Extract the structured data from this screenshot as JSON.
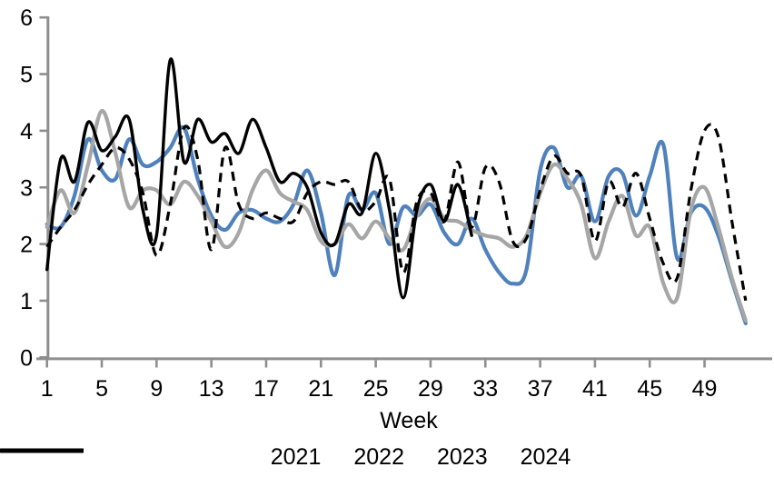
{
  "chart_data": {
    "type": "line",
    "title": "",
    "xlabel": "Week",
    "ylabel": "",
    "xlim": [
      1,
      52
    ],
    "ylim": [
      0,
      6
    ],
    "yticks": [
      0,
      1,
      2,
      3,
      4,
      5,
      6
    ],
    "xticks": [
      1,
      5,
      9,
      13,
      17,
      21,
      25,
      29,
      33,
      37,
      41,
      45,
      49
    ],
    "grid": false,
    "line_smoothing": true,
    "legend_position": "bottom",
    "axis_color": "#8e8e8e",
    "text_color": "#000000",
    "weeks": [
      1,
      2,
      3,
      4,
      5,
      6,
      7,
      8,
      9,
      10,
      11,
      12,
      13,
      14,
      15,
      16,
      17,
      18,
      19,
      20,
      21,
      22,
      23,
      24,
      25,
      26,
      27,
      28,
      29,
      30,
      31,
      32,
      33,
      34,
      35,
      36,
      37,
      38,
      39,
      40,
      41,
      42,
      43,
      44,
      45,
      46,
      47,
      48,
      49,
      50,
      51,
      52
    ],
    "series": [
      {
        "name": "2021",
        "color": "#4F81BD",
        "style": "solid",
        "stroke_width": 4.2,
        "values": [
          2.35,
          2.3,
          2.85,
          3.85,
          3.3,
          3.15,
          3.85,
          3.4,
          3.45,
          3.7,
          4.05,
          3.15,
          2.5,
          2.25,
          2.55,
          2.6,
          2.45,
          2.4,
          2.7,
          3.3,
          2.55,
          1.45,
          2.85,
          2.6,
          2.9,
          2.0,
          2.65,
          2.5,
          2.7,
          2.2,
          2.0,
          2.45,
          1.9,
          1.5,
          1.3,
          1.55,
          3.3,
          3.7,
          3.0,
          3.2,
          2.4,
          3.2,
          3.25,
          2.5,
          3.2,
          3.75,
          1.75,
          2.55,
          2.65,
          2.15,
          1.35,
          0.6
        ]
      },
      {
        "name": "2022",
        "color": "#A6A6A6",
        "style": "solid",
        "stroke_width": 4.2,
        "values": [
          2.3,
          2.95,
          2.55,
          3.4,
          4.35,
          3.6,
          2.65,
          2.95,
          2.95,
          2.7,
          3.1,
          2.85,
          2.4,
          1.95,
          2.2,
          2.95,
          3.3,
          2.9,
          2.75,
          2.6,
          2.05,
          2.0,
          2.35,
          2.1,
          2.4,
          2.1,
          1.9,
          2.5,
          2.8,
          2.45,
          2.4,
          2.25,
          2.15,
          2.1,
          1.95,
          2.15,
          2.9,
          3.4,
          3.15,
          2.7,
          1.75,
          2.4,
          2.85,
          2.15,
          2.3,
          1.3,
          1.05,
          2.6,
          3.0,
          2.3,
          1.4,
          0.65
        ]
      },
      {
        "name": "2023",
        "color": "#000000",
        "style": "dashed",
        "stroke_width": 3.2,
        "values": [
          1.95,
          2.3,
          2.6,
          3.05,
          3.4,
          3.7,
          3.5,
          2.9,
          1.8,
          2.7,
          4.05,
          3.5,
          1.9,
          3.7,
          2.7,
          2.45,
          2.55,
          2.45,
          2.4,
          2.9,
          3.1,
          3.05,
          3.1,
          2.6,
          2.75,
          3.15,
          1.5,
          2.75,
          2.9,
          2.4,
          3.45,
          2.3,
          3.35,
          3.1,
          2.05,
          2.1,
          2.95,
          3.55,
          3.25,
          3.2,
          2.05,
          3.1,
          2.65,
          3.25,
          2.45,
          1.65,
          1.4,
          2.95,
          4.0,
          3.9,
          2.4,
          1.0
        ]
      },
      {
        "name": "2024",
        "color": "#000000",
        "style": "solid",
        "stroke_width": 3.4,
        "values": [
          1.55,
          3.5,
          3.1,
          4.15,
          3.65,
          3.9,
          4.2,
          2.6,
          2.15,
          5.25,
          3.45,
          4.2,
          3.8,
          3.95,
          3.6,
          4.2,
          3.7,
          3.1,
          3.25,
          3.0,
          2.2,
          2.0,
          2.7,
          2.55,
          3.6,
          2.6,
          1.05,
          2.6,
          3.05,
          2.4,
          3.05,
          2.15
        ]
      }
    ]
  }
}
